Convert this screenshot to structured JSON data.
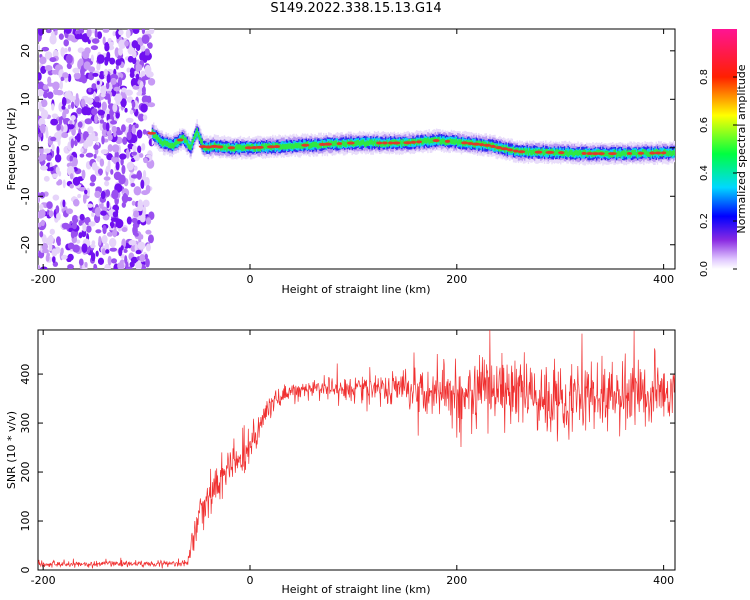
{
  "title": "S149.2022.338.15.13.G14",
  "colors": {
    "snr_line": "#f03030",
    "ridge": "#e03a2a",
    "noise": "#7a2cf0"
  },
  "chart_data": [
    {
      "type": "heatmap",
      "xlabel": "Height of straight line (km)",
      "ylabel": "Frequency (Hz)",
      "xlim": [
        -205,
        411
      ],
      "ylim": [
        -25,
        24.5
      ],
      "xticks": [
        -200,
        0,
        200,
        400
      ],
      "yticks": [
        -20,
        -10,
        0,
        10,
        20
      ],
      "colorbar": {
        "label": "Normalized spectral amplitude",
        "range": [
          0,
          1
        ],
        "ticks": [
          0.0,
          0.2,
          0.4,
          0.6,
          0.8
        ],
        "tick_labels": [
          "0.0",
          "0.2",
          "0.4",
          "0.6",
          "0.8"
        ],
        "colormap": "hsv-rainbow (white-violet-blue-cyan-green-yellow-red-magenta)"
      },
      "noise_region_x": [
        -205,
        -95
      ],
      "ridge": {
        "x": [
          -95,
          -85,
          -75,
          -65,
          -58,
          -52,
          -45,
          -35,
          -20,
          0,
          50,
          100,
          150,
          180,
          200,
          230,
          260,
          300,
          330,
          360,
          411
        ],
        "y": [
          3,
          1,
          0.5,
          2,
          0,
          3.5,
          0,
          0.3,
          0,
          0,
          0.5,
          1,
          1,
          1.5,
          1.2,
          0.5,
          -0.8,
          -1,
          -1.2,
          -1.2,
          -1
        ]
      }
    },
    {
      "type": "line",
      "xlabel": "Height of straight line (km)",
      "ylabel": "SNR (10 * v/v)",
      "xlim": [
        -205,
        411
      ],
      "ylim": [
        0,
        490
      ],
      "xticks": [
        -200,
        0,
        200,
        400
      ],
      "yticks": [
        0,
        100,
        200,
        300,
        400
      ],
      "series": [
        {
          "x": [
            -205,
            -150,
            -100,
            -60,
            -55,
            -50,
            -40,
            -30,
            -20,
            -10,
            0,
            10,
            20,
            30,
            40,
            60,
            100,
            150,
            200,
            250,
            300,
            350,
            411
          ],
          "y": [
            12,
            12,
            13,
            15,
            60,
            110,
            150,
            175,
            215,
            230,
            240,
            300,
            340,
            355,
            365,
            370,
            372,
            372,
            365,
            365,
            350,
            355,
            360
          ],
          "spread": [
            6,
            6,
            6,
            6,
            25,
            35,
            40,
            40,
            40,
            40,
            40,
            25,
            20,
            18,
            15,
            15,
            25,
            35,
            55,
            65,
            70,
            60,
            50
          ]
        }
      ]
    }
  ]
}
